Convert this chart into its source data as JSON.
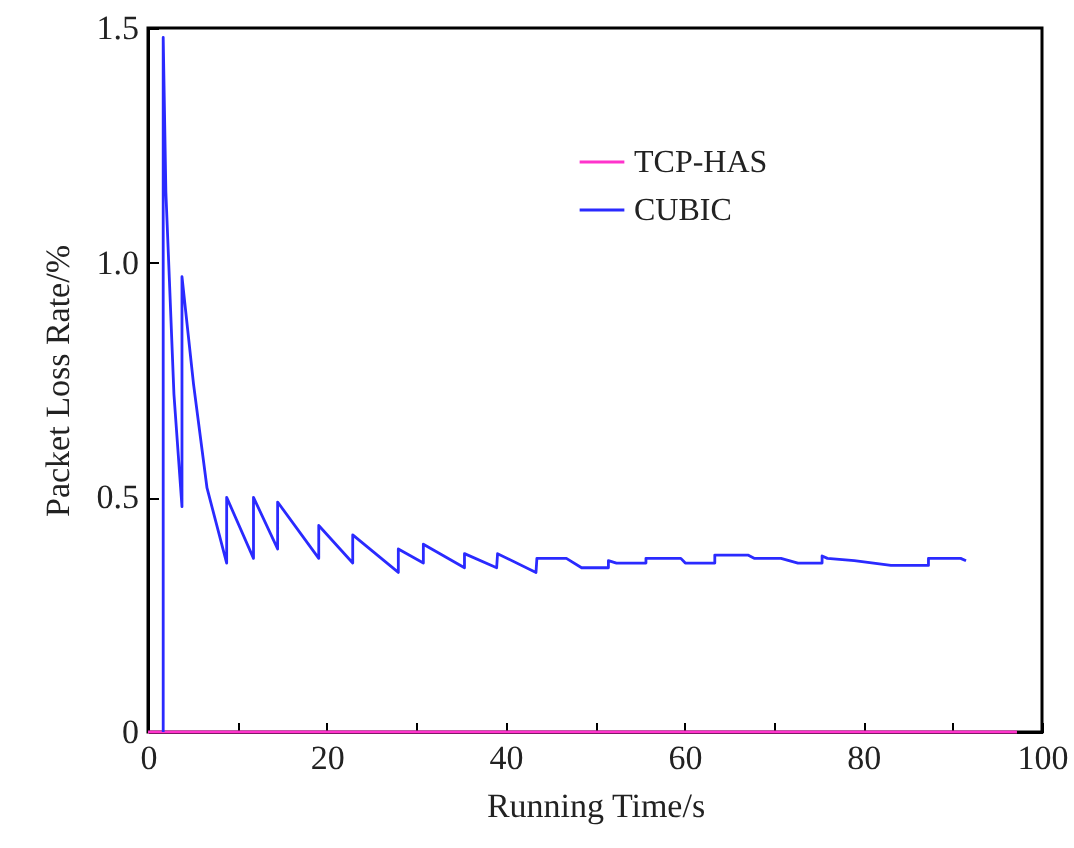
{
  "chart_data": {
    "type": "line",
    "xlabel": "Running Time/s",
    "ylabel": "Packet Loss Rate/%",
    "xlim": [
      0,
      100
    ],
    "ylim": [
      0,
      1.5
    ],
    "xticks": [
      0,
      {
        "value": 10,
        "label": null
      },
      20,
      {
        "value": 30,
        "label": null
      },
      40,
      {
        "value": 50,
        "label": null
      },
      60,
      {
        "value": 70,
        "label": null
      },
      80,
      {
        "value": 90,
        "label": null
      },
      100
    ],
    "yticks": [
      0,
      {
        "value": 0.5,
        "label": "0.5"
      },
      {
        "value": 1,
        "label": "1.0"
      },
      1.5
    ],
    "legend": "top right",
    "grid": false,
    "marker": "none",
    "line_style": "solid",
    "series": [
      {
        "name": "TCP-HAS",
        "color": "#ff33cc",
        "x": [
          0,
          97.2
        ],
        "values": [
          0,
          0
        ]
      },
      {
        "name": "CUBIC",
        "color": "#2a2aff",
        "x": [
          1.7,
          1.7,
          2.0,
          2.4,
          2.9,
          3.8,
          3.8,
          5.1,
          6.6,
          8.8,
          8.8,
          11.8,
          11.8,
          14.5,
          14.5,
          19.1,
          19.1,
          22.9,
          22.9,
          28,
          28,
          30.8,
          30.8,
          35.4,
          35.4,
          39,
          39.1,
          43.4,
          43.5,
          46.8,
          48.5,
          51.5,
          51.5,
          52.4,
          55.7,
          55.7,
          59.6,
          60.1,
          63.4,
          63.4,
          67.1,
          67.8,
          70.8,
          72.7,
          75.4,
          75.4,
          76,
          79,
          83.1,
          87.3,
          87.3,
          90.9,
          91.5
        ],
        "values": [
          0,
          1.48,
          1.15,
          0.96,
          0.72,
          0.48,
          0.97,
          0.74,
          0.52,
          0.36,
          0.5,
          0.37,
          0.5,
          0.39,
          0.49,
          0.37,
          0.44,
          0.36,
          0.42,
          0.34,
          0.39,
          0.36,
          0.4,
          0.35,
          0.38,
          0.35,
          0.38,
          0.34,
          0.37,
          0.37,
          0.35,
          0.35,
          0.365,
          0.36,
          0.36,
          0.37,
          0.37,
          0.36,
          0.36,
          0.377,
          0.377,
          0.37,
          0.37,
          0.36,
          0.36,
          0.375,
          0.37,
          0.365,
          0.355,
          0.355,
          0.37,
          0.37,
          0.365
        ]
      }
    ]
  }
}
